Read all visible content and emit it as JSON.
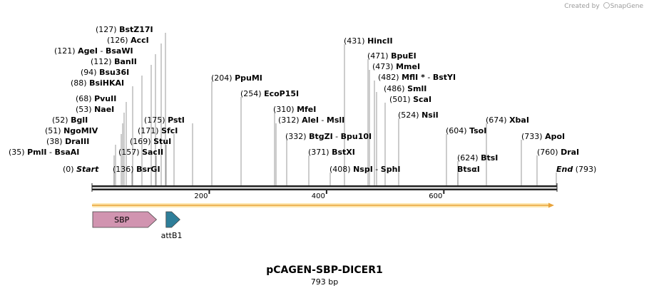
{
  "credit": {
    "prefix": "Created by",
    "brand": "SnapGene"
  },
  "plasmid": {
    "name": "pCAGEN-SBP-DICER1",
    "length_label": "793 bp",
    "length": 793
  },
  "ticks": [
    {
      "pos": 200,
      "label": "200"
    },
    {
      "pos": 400,
      "label": "400"
    },
    {
      "pos": 600,
      "label": "600"
    }
  ],
  "sites": [
    {
      "name": "Start",
      "pos": "(0)",
      "site": 0,
      "italic": true
    },
    {
      "name": "PmlI",
      "name2": "BsaAI",
      "pos": "(35)",
      "site": 35
    },
    {
      "name": "DraIII",
      "pos": "(38)",
      "site": 38
    },
    {
      "name": "NgoMIV",
      "pos": "(51)",
      "site": 51
    },
    {
      "name": "BglI",
      "pos": "(52)",
      "site": 52
    },
    {
      "name": "NaeI",
      "pos": "(53)",
      "site": 53
    },
    {
      "name": "PvuII",
      "pos": "(68)",
      "site": 68
    },
    {
      "name": "BsiHKAI",
      "pos": "(88)",
      "site": 88
    },
    {
      "name": "Bsu36I",
      "pos": "(94)",
      "site": 94
    },
    {
      "name": "BanII",
      "pos": "(112)",
      "site": 112
    },
    {
      "name": "AgeI",
      "name2": "BsaWI",
      "pos": "(121)",
      "site": 121
    },
    {
      "name": "AccI",
      "pos": "(126)",
      "site": 126
    },
    {
      "name": "BstZ17I",
      "pos": "(127)",
      "site": 127
    },
    {
      "name": "BsrGI",
      "pos": "(136)",
      "site": 136
    },
    {
      "name": "SacII",
      "pos": "(157)",
      "site": 157
    },
    {
      "name": "StuI",
      "pos": "(169)",
      "site": 169
    },
    {
      "name": "SfcI",
      "pos": "(171)",
      "site": 171
    },
    {
      "name": "PstI",
      "pos": "(175)",
      "site": 175
    },
    {
      "name": "PpuMI",
      "pos": "(204)",
      "site": 204
    },
    {
      "name": "EcoP15I",
      "pos": "(254)",
      "site": 254
    },
    {
      "name": "MfeI",
      "pos": "(310)",
      "site": 310
    },
    {
      "name": "AleI",
      "name2": "MslI",
      "pos": "(312)",
      "site": 312
    },
    {
      "name": "BtgZI",
      "name2": "Bpu10I",
      "pos": "(332)",
      "site": 332
    },
    {
      "name": "BstXI",
      "pos": "(371)",
      "site": 371
    },
    {
      "name": "NspI",
      "name2": "SphI",
      "pos": "(408)",
      "site": 408
    },
    {
      "name": "HincII",
      "pos": "(431)",
      "site": 431
    },
    {
      "name": "BpuEI",
      "pos": "(471)",
      "site": 471
    },
    {
      "name": "MmeI",
      "pos": "(473)",
      "site": 473
    },
    {
      "name": "MflI *",
      "name2": "BstYI",
      "pos": "(482)",
      "site": 482
    },
    {
      "name": "SmlI",
      "pos": "(486)",
      "site": 486
    },
    {
      "name": "ScaI",
      "pos": "(501)",
      "site": 501
    },
    {
      "name": "NsiI",
      "pos": "(524)",
      "site": 524
    },
    {
      "name": "TsoI",
      "pos": "(604)",
      "site": 604
    },
    {
      "name": "BtsI",
      "pos": "(624)",
      "site": 624
    },
    {
      "name": "BtsαI",
      "site": 624
    },
    {
      "name": "XbaI",
      "pos": "(674)",
      "site": 674
    },
    {
      "name": "ApoI",
      "pos": "(733)",
      "site": 733
    },
    {
      "name": "DraI",
      "pos": "(760)",
      "site": 760
    },
    {
      "name": "End",
      "pos": "(793)",
      "site": 793,
      "italic": true
    }
  ],
  "orf": {
    "start": 0,
    "end": 793,
    "color": "#e8a33a",
    "fill": "#fde7b0"
  },
  "features": [
    {
      "name": "SBP",
      "start": 0,
      "end": 110,
      "color": "#d194b0",
      "label_position": "inside"
    },
    {
      "name": "attB1",
      "start": 125,
      "end": 150,
      "color": "#2e7e99",
      "label_position": "below"
    }
  ]
}
